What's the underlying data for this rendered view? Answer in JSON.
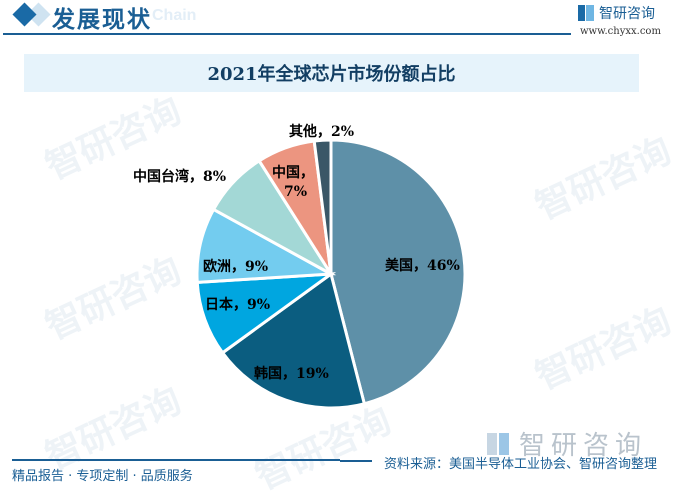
{
  "header": {
    "section_title": "发展现状",
    "ghost_text": "Chain",
    "brand_name": "智研咨询",
    "brand_url": "www.chyxx.com"
  },
  "watermark": {
    "text": "智研咨询",
    "wm_logo_text": "智研咨询"
  },
  "chart_data": {
    "type": "pie",
    "title": "2021年全球芯片市场份额占比",
    "start_angle": "12 o'clock, clockwise",
    "categories": [
      "美国",
      "韩国",
      "日本",
      "欧洲",
      "中国台湾",
      "中国",
      "其他"
    ],
    "values": [
      46,
      19,
      9,
      9,
      8,
      7,
      2
    ],
    "unit": "%",
    "colors": [
      "#5e90a8",
      "#0b5d80",
      "#00a6e0",
      "#73ccef",
      "#a3d8d6",
      "#ec9580",
      "#3a5767"
    ],
    "labels": [
      {
        "name": "美国",
        "text": "美国，46%"
      },
      {
        "name": "韩国",
        "text": "韩国，19%"
      },
      {
        "name": "日本",
        "text": "日本，9%"
      },
      {
        "name": "欧洲",
        "text": "欧洲，9%"
      },
      {
        "name": "中国台湾",
        "text": "中国台湾，8%"
      },
      {
        "name": "中国",
        "text_line1": "中国，",
        "text_line2": "7%"
      },
      {
        "name": "其他",
        "text": "其他，2%"
      }
    ],
    "legend": "none (data labels on/near slices)"
  },
  "footer": {
    "left": "精品报告 · 专项定制 · 品质服务",
    "source": "资料来源：美国半导体工业协会、智研咨询整理"
  }
}
